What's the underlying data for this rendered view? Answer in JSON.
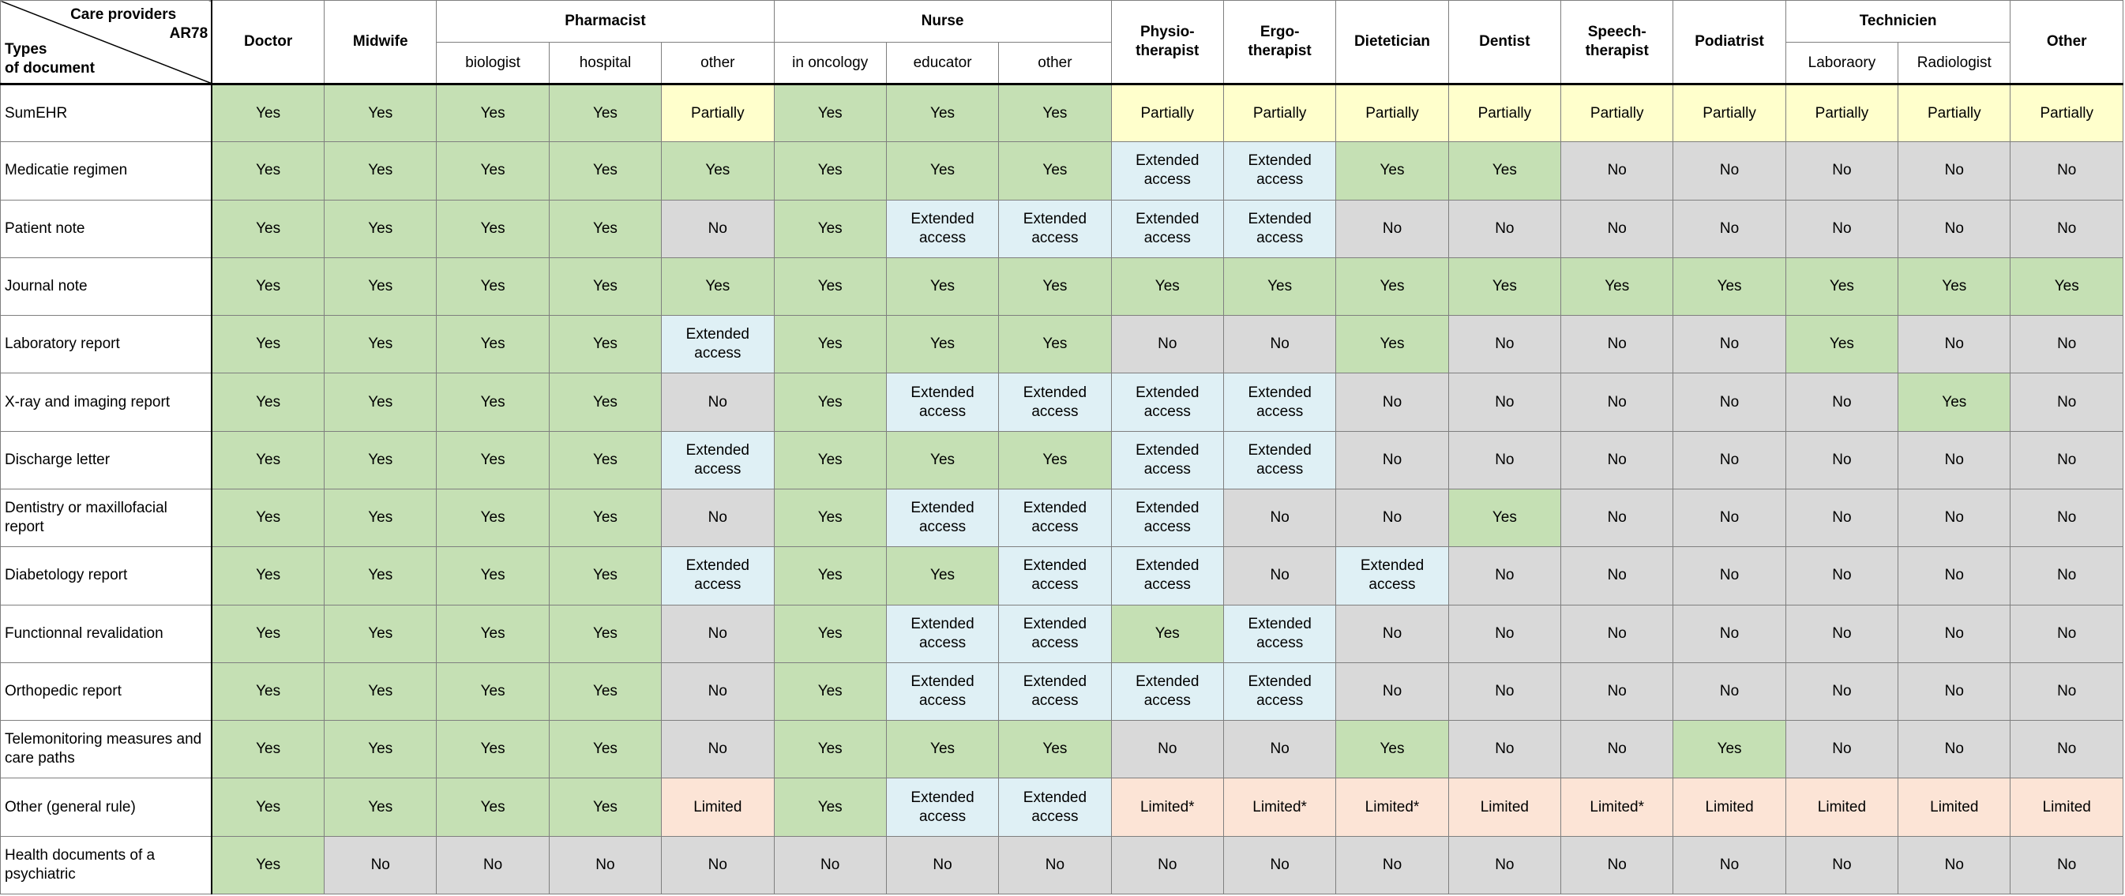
{
  "corner": {
    "top_label": "Care providers",
    "top_code": "AR78",
    "bottom_label_1": "Types",
    "bottom_label_2": "of document"
  },
  "providers": {
    "doctor": "Doctor",
    "midwife": "Midwife",
    "pharmacist": "Pharmacist",
    "pharmacist_biologist": "biologist",
    "pharmacist_hospital": "hospital",
    "pharmacist_other": "other",
    "nurse": "Nurse",
    "nurse_oncology": "in oncology",
    "nurse_educator": "educator",
    "nurse_other": "other",
    "physio": "Physio-\ntherapist",
    "ergo": "Ergo-\ntherapist",
    "dietetician": "Dietetician",
    "dentist": "Dentist",
    "speech": "Speech-\ntherapist",
    "podiatrist": "Podiatrist",
    "technicien": "Technicien",
    "tech_laboratory": "Laboraory",
    "tech_radiologist": "Radiologist",
    "other": "Other"
  },
  "status_colors": {
    "yes": "#c5e0b4",
    "partially": "#ffffcc",
    "extended": "#dff0f5",
    "no": "#d9d9d9",
    "limited": "#fce4d6"
  },
  "rows": [
    {
      "label": "SumEHR",
      "cells": [
        {
          "text": "Yes",
          "status": "yes"
        },
        {
          "text": "Yes",
          "status": "yes"
        },
        {
          "text": "Yes",
          "status": "yes"
        },
        {
          "text": "Yes",
          "status": "yes"
        },
        {
          "text": "Partially",
          "status": "partially"
        },
        {
          "text": "Yes",
          "status": "yes"
        },
        {
          "text": "Yes",
          "status": "yes"
        },
        {
          "text": "Yes",
          "status": "yes"
        },
        {
          "text": "Partially",
          "status": "partially"
        },
        {
          "text": "Partially",
          "status": "partially"
        },
        {
          "text": "Partially",
          "status": "partially"
        },
        {
          "text": "Partially",
          "status": "partially"
        },
        {
          "text": "Partially",
          "status": "partially"
        },
        {
          "text": "Partially",
          "status": "partially"
        },
        {
          "text": "Partially",
          "status": "partially"
        },
        {
          "text": "Partially",
          "status": "partially"
        },
        {
          "text": "Partially",
          "status": "partially"
        }
      ]
    },
    {
      "label": "Medicatie regimen",
      "cells": [
        {
          "text": "Yes",
          "status": "yes"
        },
        {
          "text": "Yes",
          "status": "yes"
        },
        {
          "text": "Yes",
          "status": "yes"
        },
        {
          "text": "Yes",
          "status": "yes"
        },
        {
          "text": "Yes",
          "status": "yes"
        },
        {
          "text": "Yes",
          "status": "yes"
        },
        {
          "text": "Yes",
          "status": "yes"
        },
        {
          "text": "Yes",
          "status": "yes"
        },
        {
          "text": "Extended\naccess",
          "status": "extended"
        },
        {
          "text": "Extended\naccess",
          "status": "extended"
        },
        {
          "text": "Yes",
          "status": "yes"
        },
        {
          "text": "Yes",
          "status": "yes"
        },
        {
          "text": "No",
          "status": "no"
        },
        {
          "text": "No",
          "status": "no"
        },
        {
          "text": "No",
          "status": "no"
        },
        {
          "text": "No",
          "status": "no"
        },
        {
          "text": "No",
          "status": "no"
        }
      ]
    },
    {
      "label": "Patient note",
      "cells": [
        {
          "text": "Yes",
          "status": "yes"
        },
        {
          "text": "Yes",
          "status": "yes"
        },
        {
          "text": "Yes",
          "status": "yes"
        },
        {
          "text": "Yes",
          "status": "yes"
        },
        {
          "text": "No",
          "status": "no"
        },
        {
          "text": "Yes",
          "status": "yes"
        },
        {
          "text": "Extended\naccess",
          "status": "extended"
        },
        {
          "text": "Extended\naccess",
          "status": "extended"
        },
        {
          "text": "Extended\naccess",
          "status": "extended"
        },
        {
          "text": "Extended\naccess",
          "status": "extended"
        },
        {
          "text": "No",
          "status": "no"
        },
        {
          "text": "No",
          "status": "no"
        },
        {
          "text": "No",
          "status": "no"
        },
        {
          "text": "No",
          "status": "no"
        },
        {
          "text": "No",
          "status": "no"
        },
        {
          "text": "No",
          "status": "no"
        },
        {
          "text": "No",
          "status": "no"
        }
      ]
    },
    {
      "label": "Journal note",
      "cells": [
        {
          "text": "Yes",
          "status": "yes"
        },
        {
          "text": "Yes",
          "status": "yes"
        },
        {
          "text": "Yes",
          "status": "yes"
        },
        {
          "text": "Yes",
          "status": "yes"
        },
        {
          "text": "Yes",
          "status": "yes"
        },
        {
          "text": "Yes",
          "status": "yes"
        },
        {
          "text": "Yes",
          "status": "yes"
        },
        {
          "text": "Yes",
          "status": "yes"
        },
        {
          "text": "Yes",
          "status": "yes"
        },
        {
          "text": "Yes",
          "status": "yes"
        },
        {
          "text": "Yes",
          "status": "yes"
        },
        {
          "text": "Yes",
          "status": "yes"
        },
        {
          "text": "Yes",
          "status": "yes"
        },
        {
          "text": "Yes",
          "status": "yes"
        },
        {
          "text": "Yes",
          "status": "yes"
        },
        {
          "text": "Yes",
          "status": "yes"
        },
        {
          "text": "Yes",
          "status": "yes"
        }
      ]
    },
    {
      "label": "Laboratory report",
      "cells": [
        {
          "text": "Yes",
          "status": "yes"
        },
        {
          "text": "Yes",
          "status": "yes"
        },
        {
          "text": "Yes",
          "status": "yes"
        },
        {
          "text": "Yes",
          "status": "yes"
        },
        {
          "text": "Extended\naccess",
          "status": "extended"
        },
        {
          "text": "Yes",
          "status": "yes"
        },
        {
          "text": "Yes",
          "status": "yes"
        },
        {
          "text": "Yes",
          "status": "yes"
        },
        {
          "text": "No",
          "status": "no"
        },
        {
          "text": "No",
          "status": "no"
        },
        {
          "text": "Yes",
          "status": "yes"
        },
        {
          "text": "No",
          "status": "no"
        },
        {
          "text": "No",
          "status": "no"
        },
        {
          "text": "No",
          "status": "no"
        },
        {
          "text": "Yes",
          "status": "yes"
        },
        {
          "text": "No",
          "status": "no"
        },
        {
          "text": "No",
          "status": "no"
        }
      ]
    },
    {
      "label": "X-ray and imaging report",
      "cells": [
        {
          "text": "Yes",
          "status": "yes"
        },
        {
          "text": "Yes",
          "status": "yes"
        },
        {
          "text": "Yes",
          "status": "yes"
        },
        {
          "text": "Yes",
          "status": "yes"
        },
        {
          "text": "No",
          "status": "no"
        },
        {
          "text": "Yes",
          "status": "yes"
        },
        {
          "text": "Extended\naccess",
          "status": "extended"
        },
        {
          "text": "Extended\naccess",
          "status": "extended"
        },
        {
          "text": "Extended\naccess",
          "status": "extended"
        },
        {
          "text": "Extended\naccess",
          "status": "extended"
        },
        {
          "text": "No",
          "status": "no"
        },
        {
          "text": "No",
          "status": "no"
        },
        {
          "text": "No",
          "status": "no"
        },
        {
          "text": "No",
          "status": "no"
        },
        {
          "text": "No",
          "status": "no"
        },
        {
          "text": "Yes",
          "status": "yes"
        },
        {
          "text": "No",
          "status": "no"
        }
      ]
    },
    {
      "label": "Discharge letter",
      "cells": [
        {
          "text": "Yes",
          "status": "yes"
        },
        {
          "text": "Yes",
          "status": "yes"
        },
        {
          "text": "Yes",
          "status": "yes"
        },
        {
          "text": "Yes",
          "status": "yes"
        },
        {
          "text": "Extended\naccess",
          "status": "extended"
        },
        {
          "text": "Yes",
          "status": "yes"
        },
        {
          "text": "Yes",
          "status": "yes"
        },
        {
          "text": "Yes",
          "status": "yes"
        },
        {
          "text": "Extended\naccess",
          "status": "extended"
        },
        {
          "text": "Extended\naccess",
          "status": "extended"
        },
        {
          "text": "No",
          "status": "no"
        },
        {
          "text": "No",
          "status": "no"
        },
        {
          "text": "No",
          "status": "no"
        },
        {
          "text": "No",
          "status": "no"
        },
        {
          "text": "No",
          "status": "no"
        },
        {
          "text": "No",
          "status": "no"
        },
        {
          "text": "No",
          "status": "no"
        }
      ]
    },
    {
      "label": "Dentistry or maxillofacial report",
      "cells": [
        {
          "text": "Yes",
          "status": "yes"
        },
        {
          "text": "Yes",
          "status": "yes"
        },
        {
          "text": "Yes",
          "status": "yes"
        },
        {
          "text": "Yes",
          "status": "yes"
        },
        {
          "text": "No",
          "status": "no"
        },
        {
          "text": "Yes",
          "status": "yes"
        },
        {
          "text": "Extended\naccess",
          "status": "extended"
        },
        {
          "text": "Extended\naccess",
          "status": "extended"
        },
        {
          "text": "Extended\naccess",
          "status": "extended"
        },
        {
          "text": "No",
          "status": "no"
        },
        {
          "text": "No",
          "status": "no"
        },
        {
          "text": "Yes",
          "status": "yes"
        },
        {
          "text": "No",
          "status": "no"
        },
        {
          "text": "No",
          "status": "no"
        },
        {
          "text": "No",
          "status": "no"
        },
        {
          "text": "No",
          "status": "no"
        },
        {
          "text": "No",
          "status": "no"
        }
      ]
    },
    {
      "label": "Diabetology report",
      "cells": [
        {
          "text": "Yes",
          "status": "yes"
        },
        {
          "text": "Yes",
          "status": "yes"
        },
        {
          "text": "Yes",
          "status": "yes"
        },
        {
          "text": "Yes",
          "status": "yes"
        },
        {
          "text": "Extended\naccess",
          "status": "extended"
        },
        {
          "text": "Yes",
          "status": "yes"
        },
        {
          "text": "Yes",
          "status": "yes"
        },
        {
          "text": "Extended\naccess",
          "status": "extended"
        },
        {
          "text": "Extended\naccess",
          "status": "extended"
        },
        {
          "text": "No",
          "status": "no"
        },
        {
          "text": "Extended\naccess",
          "status": "extended"
        },
        {
          "text": "No",
          "status": "no"
        },
        {
          "text": "No",
          "status": "no"
        },
        {
          "text": "No",
          "status": "no"
        },
        {
          "text": "No",
          "status": "no"
        },
        {
          "text": "No",
          "status": "no"
        },
        {
          "text": "No",
          "status": "no"
        }
      ]
    },
    {
      "label": "Functionnal revalidation",
      "cells": [
        {
          "text": "Yes",
          "status": "yes"
        },
        {
          "text": "Yes",
          "status": "yes"
        },
        {
          "text": "Yes",
          "status": "yes"
        },
        {
          "text": "Yes",
          "status": "yes"
        },
        {
          "text": "No",
          "status": "no"
        },
        {
          "text": "Yes",
          "status": "yes"
        },
        {
          "text": "Extended\naccess",
          "status": "extended"
        },
        {
          "text": "Extended\naccess",
          "status": "extended"
        },
        {
          "text": "Yes",
          "status": "yes"
        },
        {
          "text": "Extended\naccess",
          "status": "extended"
        },
        {
          "text": "No",
          "status": "no"
        },
        {
          "text": "No",
          "status": "no"
        },
        {
          "text": "No",
          "status": "no"
        },
        {
          "text": "No",
          "status": "no"
        },
        {
          "text": "No",
          "status": "no"
        },
        {
          "text": "No",
          "status": "no"
        },
        {
          "text": "No",
          "status": "no"
        }
      ]
    },
    {
      "label": "Orthopedic report",
      "cells": [
        {
          "text": "Yes",
          "status": "yes"
        },
        {
          "text": "Yes",
          "status": "yes"
        },
        {
          "text": "Yes",
          "status": "yes"
        },
        {
          "text": "Yes",
          "status": "yes"
        },
        {
          "text": "No",
          "status": "no"
        },
        {
          "text": "Yes",
          "status": "yes"
        },
        {
          "text": "Extended\naccess",
          "status": "extended"
        },
        {
          "text": "Extended\naccess",
          "status": "extended"
        },
        {
          "text": "Extended\naccess",
          "status": "extended"
        },
        {
          "text": "Extended\naccess",
          "status": "extended"
        },
        {
          "text": "No",
          "status": "no"
        },
        {
          "text": "No",
          "status": "no"
        },
        {
          "text": "No",
          "status": "no"
        },
        {
          "text": "No",
          "status": "no"
        },
        {
          "text": "No",
          "status": "no"
        },
        {
          "text": "No",
          "status": "no"
        },
        {
          "text": "No",
          "status": "no"
        }
      ]
    },
    {
      "label": "Telemonitoring measures and\ncare paths",
      "cells": [
        {
          "text": "Yes",
          "status": "yes"
        },
        {
          "text": "Yes",
          "status": "yes"
        },
        {
          "text": "Yes",
          "status": "yes"
        },
        {
          "text": "Yes",
          "status": "yes"
        },
        {
          "text": "No",
          "status": "no"
        },
        {
          "text": "Yes",
          "status": "yes"
        },
        {
          "text": "Yes",
          "status": "yes"
        },
        {
          "text": "Yes",
          "status": "yes"
        },
        {
          "text": "No",
          "status": "no"
        },
        {
          "text": "No",
          "status": "no"
        },
        {
          "text": "Yes",
          "status": "yes"
        },
        {
          "text": "No",
          "status": "no"
        },
        {
          "text": "No",
          "status": "no"
        },
        {
          "text": "Yes",
          "status": "yes"
        },
        {
          "text": "No",
          "status": "no"
        },
        {
          "text": "No",
          "status": "no"
        },
        {
          "text": "No",
          "status": "no"
        }
      ]
    },
    {
      "label": "Other (general rule)",
      "cells": [
        {
          "text": "Yes",
          "status": "yes"
        },
        {
          "text": "Yes",
          "status": "yes"
        },
        {
          "text": "Yes",
          "status": "yes"
        },
        {
          "text": "Yes",
          "status": "yes"
        },
        {
          "text": "Limited",
          "status": "limited"
        },
        {
          "text": "Yes",
          "status": "yes"
        },
        {
          "text": "Extended\naccess",
          "status": "extended"
        },
        {
          "text": "Extended\naccess",
          "status": "extended"
        },
        {
          "text": "Limited*",
          "status": "limited"
        },
        {
          "text": "Limited*",
          "status": "limited"
        },
        {
          "text": "Limited*",
          "status": "limited"
        },
        {
          "text": "Limited",
          "status": "limited"
        },
        {
          "text": "Limited*",
          "status": "limited"
        },
        {
          "text": "Limited",
          "status": "limited"
        },
        {
          "text": "Limited",
          "status": "limited"
        },
        {
          "text": "Limited",
          "status": "limited"
        },
        {
          "text": "Limited",
          "status": "limited"
        }
      ]
    },
    {
      "label": "Health documents of a\npsychiatric",
      "cells": [
        {
          "text": "Yes",
          "status": "yes"
        },
        {
          "text": "No",
          "status": "no"
        },
        {
          "text": "No",
          "status": "no"
        },
        {
          "text": "No",
          "status": "no"
        },
        {
          "text": "No",
          "status": "no"
        },
        {
          "text": "No",
          "status": "no"
        },
        {
          "text": "No",
          "status": "no"
        },
        {
          "text": "No",
          "status": "no"
        },
        {
          "text": "No",
          "status": "no"
        },
        {
          "text": "No",
          "status": "no"
        },
        {
          "text": "No",
          "status": "no"
        },
        {
          "text": "No",
          "status": "no"
        },
        {
          "text": "No",
          "status": "no"
        },
        {
          "text": "No",
          "status": "no"
        },
        {
          "text": "No",
          "status": "no"
        },
        {
          "text": "No",
          "status": "no"
        },
        {
          "text": "No",
          "status": "no"
        }
      ]
    }
  ]
}
